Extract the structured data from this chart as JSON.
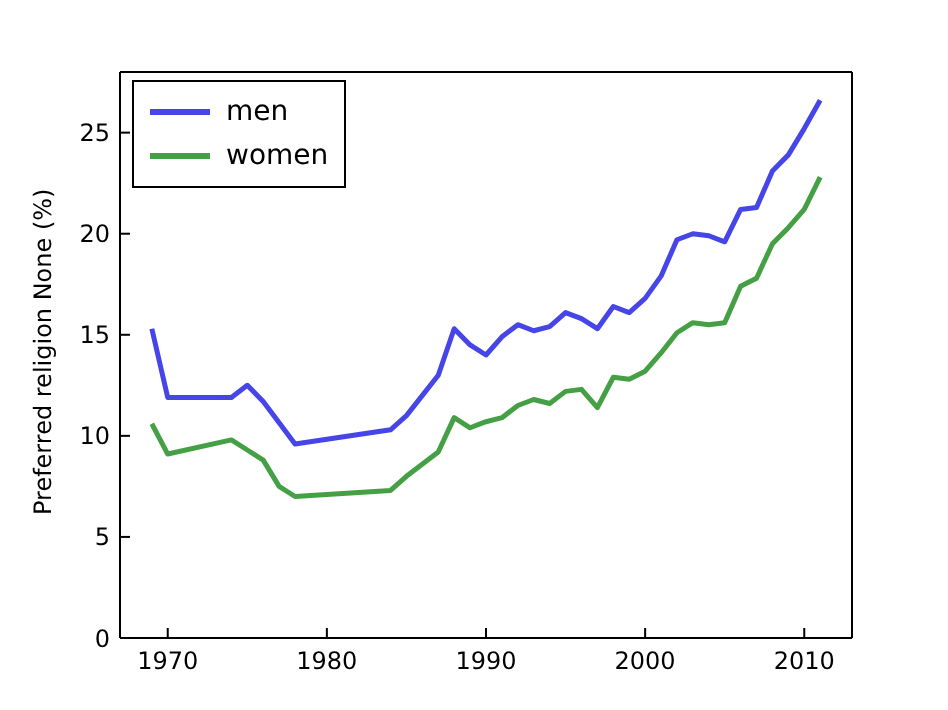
{
  "chart_data": {
    "type": "line",
    "ylabel": "Preferred religion None (%)",
    "xlim": [
      1967,
      2013
    ],
    "xticks": [
      1970,
      1980,
      1990,
      2000,
      2010
    ],
    "ylim": [
      0,
      28
    ],
    "yticks": [
      0,
      5,
      10,
      15,
      20,
      25
    ],
    "legend": "top left",
    "grid": false,
    "marker": "none",
    "line_style": "solid",
    "series": [
      {
        "name": "men",
        "color": "#4545e8",
        "x": [
          1969,
          1970,
          1974,
          1975,
          1976,
          1978,
          1984,
          1985,
          1987,
          1988,
          1989,
          1990,
          1991,
          1992,
          1993,
          1994,
          1995,
          1996,
          1997,
          1998,
          1999,
          2000,
          2001,
          2002,
          2003,
          2004,
          2005,
          2006,
          2007,
          2008,
          2009,
          2010,
          2011
        ],
        "values": [
          15.3,
          11.9,
          11.9,
          12.5,
          11.7,
          9.6,
          10.3,
          11,
          13,
          15.3,
          14.5,
          14,
          14.9,
          15.5,
          15.2,
          15.4,
          16.1,
          15.8,
          15.3,
          16.4,
          16.1,
          16.8,
          17.9,
          19.7,
          20,
          19.9,
          19.6,
          21.2,
          21.3,
          23.1,
          23.9,
          25.2,
          26.6
        ]
      },
      {
        "name": "women",
        "color": "#45a045",
        "x": [
          1969,
          1970,
          1974,
          1975,
          1976,
          1977,
          1978,
          1984,
          1985,
          1987,
          1988,
          1989,
          1990,
          1991,
          1992,
          1993,
          1994,
          1995,
          1996,
          1997,
          1998,
          1999,
          2000,
          2001,
          2002,
          2003,
          2004,
          2005,
          2006,
          2007,
          2008,
          2009,
          2010,
          2011
        ],
        "values": [
          10.6,
          9.1,
          9.8,
          9.3,
          8.8,
          7.5,
          7,
          7.3,
          8,
          9.2,
          10.9,
          10.4,
          10.7,
          10.9,
          11.5,
          11.8,
          11.6,
          12.2,
          12.3,
          11.4,
          12.9,
          12.8,
          13.2,
          14.1,
          15.1,
          15.6,
          15.5,
          15.6,
          17.4,
          17.8,
          19.5,
          20.3,
          21.2,
          22.8
        ]
      }
    ]
  }
}
